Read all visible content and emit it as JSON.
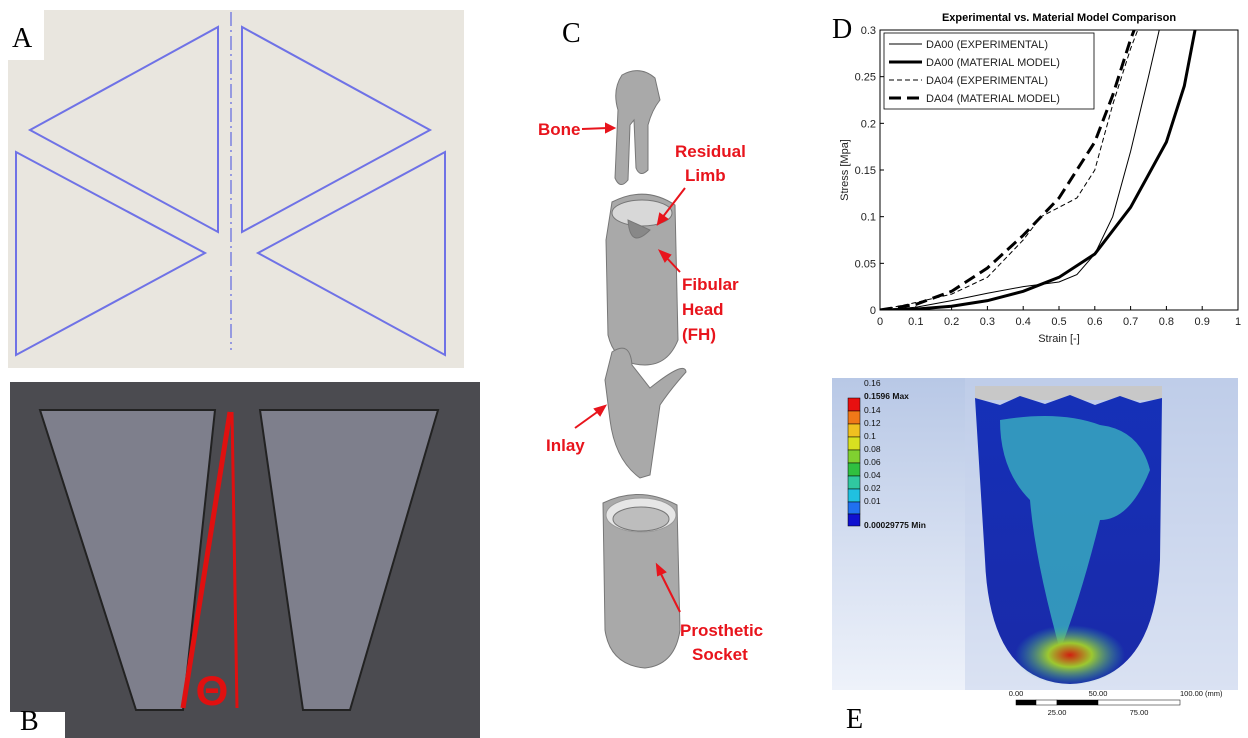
{
  "panels": {
    "a": "A",
    "b": "B",
    "c": "C",
    "d": "D",
    "e": "E"
  },
  "panel_b": {
    "symbol": "Θ"
  },
  "panel_c": {
    "bone": "Bone",
    "residual_limb": [
      "Residual",
      "Limb"
    ],
    "fibular_head": [
      "Fibular",
      "Head",
      "(FH)"
    ],
    "inlay": "Inlay",
    "prosthetic_socket": [
      "Prosthetic",
      "Socket"
    ]
  },
  "chart_data": {
    "type": "line",
    "title": "Experimental vs. Material Model Comparison",
    "x_label": "Strain [-]",
    "y_label": "Stress [Mpa]",
    "xlim": [
      0,
      1
    ],
    "xticks": [
      0,
      0.1,
      0.2,
      0.3,
      0.4,
      0.5,
      0.6,
      0.7,
      0.8,
      0.9,
      1
    ],
    "ylim": [
      0,
      0.3
    ],
    "yticks": [
      0,
      0.05,
      0.1,
      0.15,
      0.2,
      0.25,
      0.3
    ],
    "legend": "upper left",
    "series": [
      {
        "name": "DA00 (EXPERIMENTAL)",
        "color": "#000000",
        "width": 1,
        "dash": false,
        "x": [
          0,
          0.1,
          0.2,
          0.3,
          0.4,
          0.5,
          0.55,
          0.6,
          0.65,
          0.7,
          0.75,
          0.78
        ],
        "values": [
          0,
          0.003,
          0.01,
          0.018,
          0.025,
          0.03,
          0.038,
          0.06,
          0.1,
          0.17,
          0.25,
          0.3
        ]
      },
      {
        "name": "DA00 (MATERIAL MODEL)",
        "color": "#000000",
        "width": 3,
        "dash": false,
        "x": [
          0,
          0.1,
          0.2,
          0.3,
          0.4,
          0.5,
          0.6,
          0.7,
          0.8,
          0.85,
          0.88
        ],
        "values": [
          0,
          0.001,
          0.004,
          0.01,
          0.02,
          0.035,
          0.06,
          0.11,
          0.18,
          0.24,
          0.3
        ]
      },
      {
        "name": "DA04 (EXPERIMENTAL)",
        "color": "#000000",
        "width": 1,
        "dash": true,
        "x": [
          0,
          0.1,
          0.2,
          0.3,
          0.4,
          0.45,
          0.5,
          0.55,
          0.6,
          0.65,
          0.7,
          0.72
        ],
        "values": [
          0,
          0.008,
          0.017,
          0.035,
          0.075,
          0.1,
          0.11,
          0.12,
          0.15,
          0.22,
          0.28,
          0.3
        ]
      },
      {
        "name": "DA04 (MATERIAL MODEL)",
        "color": "#000000",
        "width": 3,
        "dash": true,
        "x": [
          0,
          0.1,
          0.2,
          0.3,
          0.4,
          0.5,
          0.6,
          0.65,
          0.7,
          0.71
        ],
        "values": [
          0,
          0.006,
          0.02,
          0.045,
          0.08,
          0.12,
          0.18,
          0.23,
          0.29,
          0.3
        ]
      }
    ]
  },
  "panel_e": {
    "legend": [
      "0.16",
      "0.1596 Max",
      "0.14",
      "0.12",
      "0.1",
      "0.08",
      "0.06",
      "0.04",
      "0.02",
      "0.01",
      "0.00029775 Min"
    ],
    "scale_top": [
      "0.00",
      "50.00",
      "100.00 (mm)"
    ],
    "scale_bottom": [
      "25.00",
      "75.00"
    ]
  }
}
